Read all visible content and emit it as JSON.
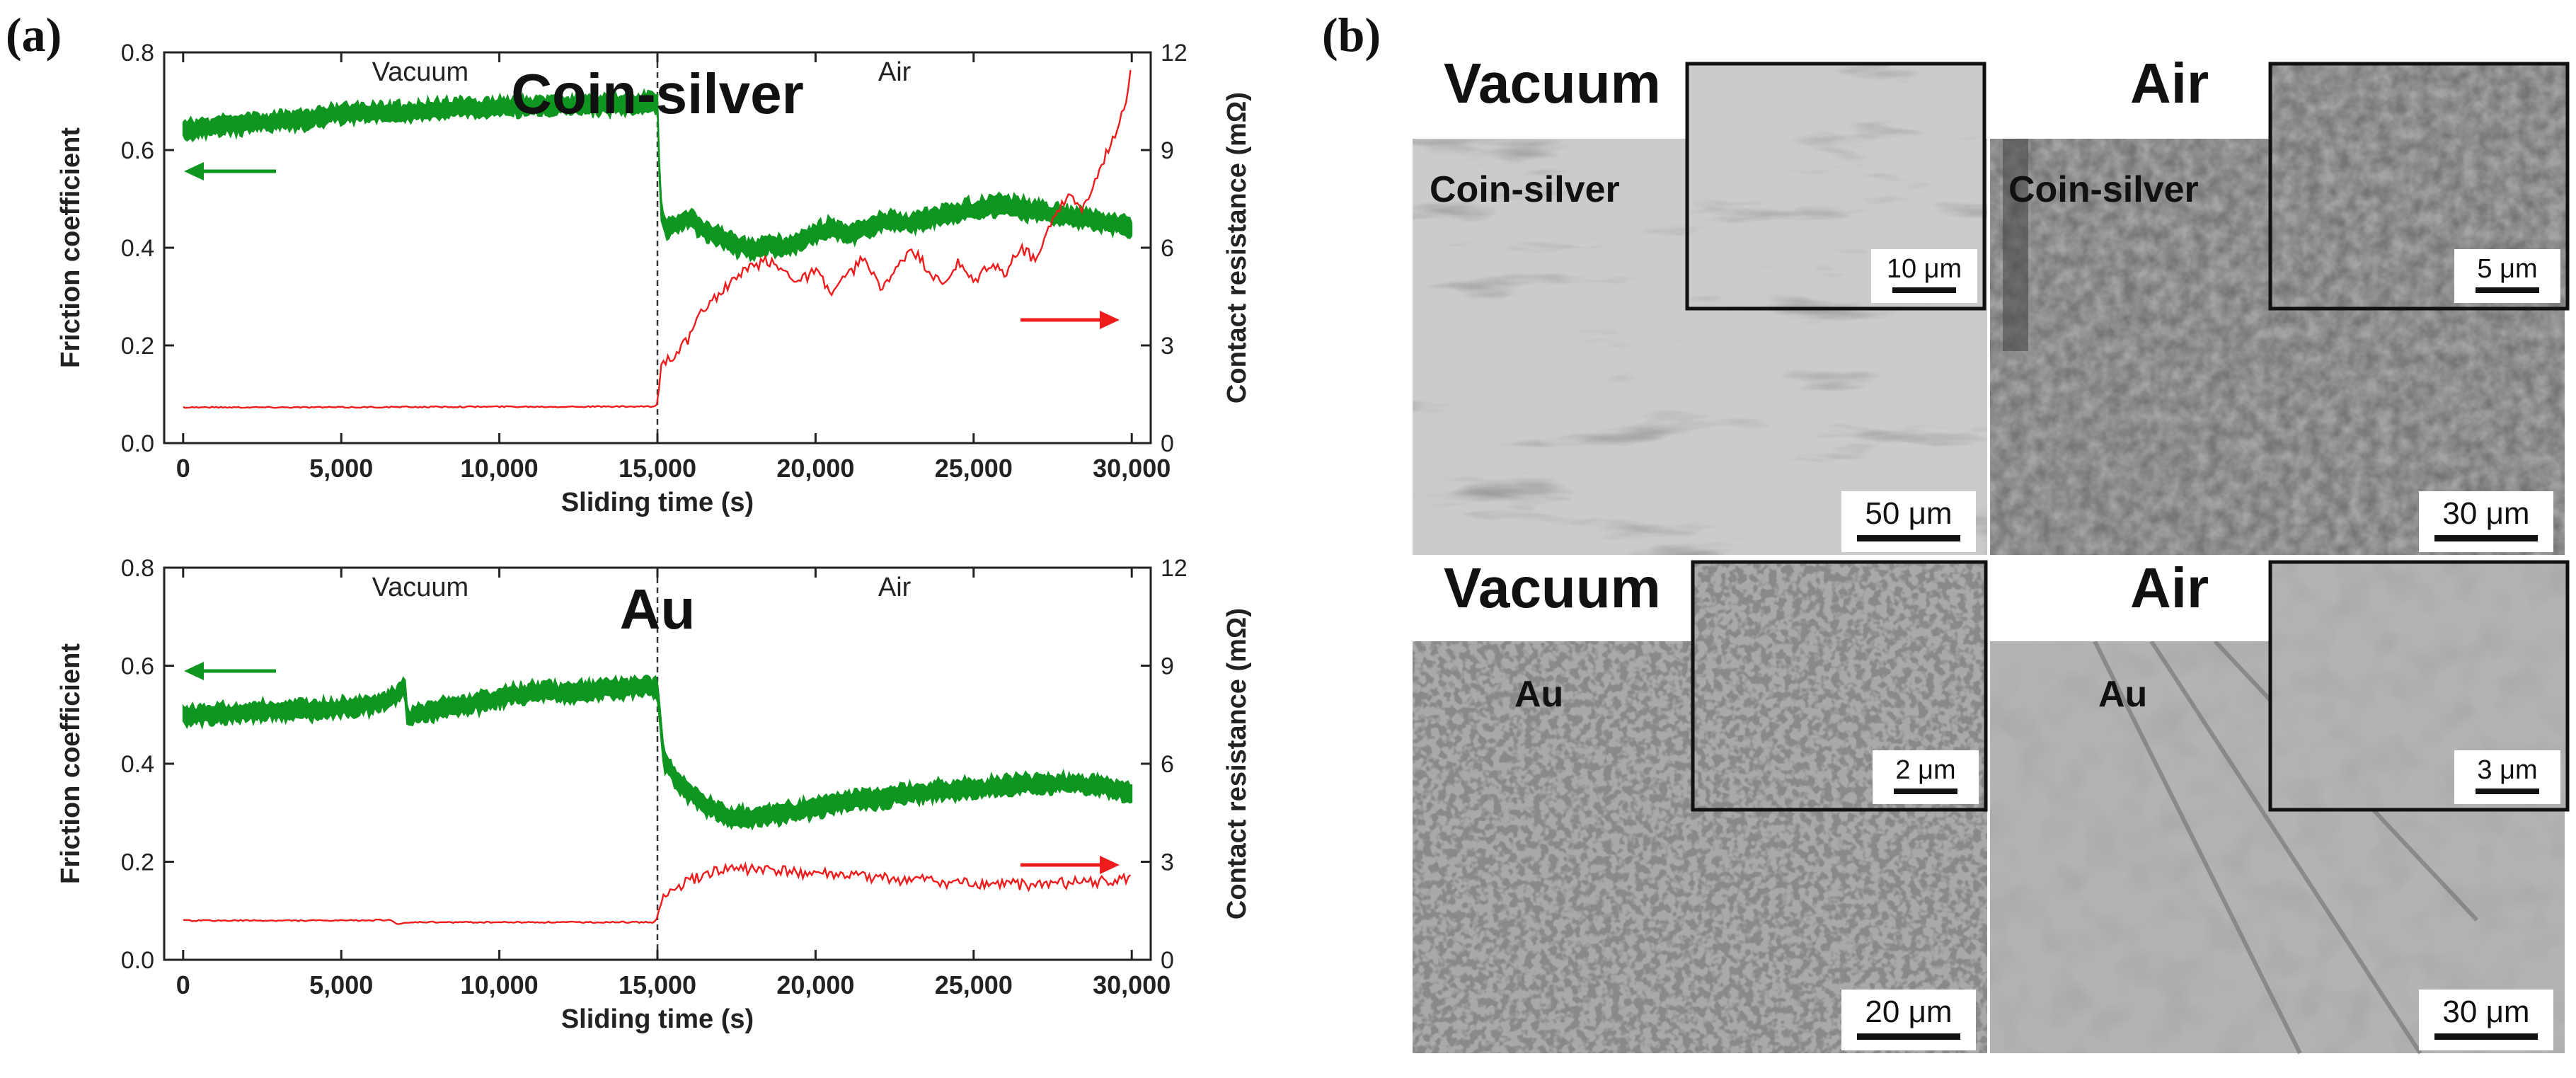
{
  "figure": {
    "panel_a_label": "(a)",
    "panel_b_label": "(b)"
  },
  "chart_data": [
    {
      "type": "line",
      "material": "Coin-silver",
      "xlabel": "Sliding time (s)",
      "ylabel_left": "Friction coefficient",
      "ylabel_right": "Contact resistance (mΩ)",
      "xlim": [
        -600,
        30600
      ],
      "xticks": [
        0,
        5000,
        10000,
        15000,
        20000,
        25000,
        30000
      ],
      "xtick_labels": [
        "0",
        "5,000",
        "10,000",
        "15,000",
        "20,000",
        "25,000",
        "30,000"
      ],
      "ylim_left": [
        0,
        0.8
      ],
      "yticks_left": [
        "0.0",
        "0.2",
        "0.4",
        "0.6",
        "0.8"
      ],
      "ylim_right": [
        0,
        12
      ],
      "yticks_right": [
        "0",
        "3",
        "6",
        "9",
        "12"
      ],
      "regions": [
        {
          "label": "Vacuum",
          "x": 7500
        },
        {
          "label": "Air",
          "x": 22500
        }
      ],
      "divider_x": 15000,
      "series": [
        {
          "name": "Friction coefficient",
          "axis": "left",
          "color": "#0e9620",
          "band_width": 0.035,
          "x": [
            0,
            1000,
            2000,
            3000,
            4000,
            5000,
            6000,
            7000,
            8000,
            9000,
            10000,
            11000,
            12000,
            13000,
            14000,
            14800,
            15000,
            15100,
            15300,
            15600,
            16000,
            16500,
            17000,
            17500,
            18000,
            18500,
            19000,
            19500,
            20000,
            20500,
            21000,
            21500,
            22000,
            22500,
            23000,
            23500,
            24000,
            24500,
            25000,
            25500,
            26000,
            26500,
            27000,
            27500,
            28000,
            28500,
            29000,
            29500,
            30000
          ],
          "values": [
            0.64,
            0.65,
            0.655,
            0.66,
            0.665,
            0.675,
            0.678,
            0.675,
            0.683,
            0.685,
            0.688,
            0.69,
            0.69,
            0.692,
            0.695,
            0.697,
            0.69,
            0.48,
            0.44,
            0.45,
            0.46,
            0.435,
            0.42,
            0.405,
            0.395,
            0.41,
            0.4,
            0.415,
            0.43,
            0.44,
            0.425,
            0.44,
            0.45,
            0.455,
            0.45,
            0.46,
            0.465,
            0.475,
            0.48,
            0.485,
            0.49,
            0.48,
            0.475,
            0.47,
            0.465,
            0.46,
            0.455,
            0.45,
            0.44
          ]
        },
        {
          "name": "Contact resistance",
          "axis": "right",
          "color": "#ee1c1c",
          "band_width": 0,
          "x": [
            0,
            5000,
            10000,
            14900,
            15000,
            15100,
            15500,
            16000,
            16500,
            17000,
            17500,
            18000,
            18500,
            19000,
            19500,
            20000,
            20500,
            21000,
            21500,
            22000,
            22500,
            23000,
            23500,
            24000,
            24500,
            25000,
            25500,
            26000,
            26500,
            27000,
            27500,
            28000,
            28500,
            29000,
            29500,
            29800,
            30000
          ],
          "values": [
            1.1,
            1.1,
            1.12,
            1.12,
            1.2,
            2.4,
            2.7,
            3.2,
            4.2,
            4.6,
            5.1,
            5.4,
            5.6,
            5.3,
            5.0,
            5.3,
            4.6,
            5.1,
            5.7,
            4.8,
            5.2,
            6.0,
            5.4,
            4.8,
            5.5,
            4.9,
            5.5,
            5.2,
            6.0,
            5.6,
            7.0,
            7.6,
            7.2,
            8.4,
            9.6,
            10.5,
            11.6
          ]
        }
      ]
    },
    {
      "type": "line",
      "material": "Au",
      "xlabel": "Sliding time (s)",
      "ylabel_left": "Friction coefficient",
      "ylabel_right": "Contact resistance (mΩ)",
      "xlim": [
        -600,
        30600
      ],
      "xticks": [
        0,
        5000,
        10000,
        15000,
        20000,
        25000,
        30000
      ],
      "xtick_labels": [
        "0",
        "5,000",
        "10,000",
        "15,000",
        "20,000",
        "25,000",
        "30,000"
      ],
      "ylim_left": [
        0,
        0.8
      ],
      "yticks_left": [
        "0.0",
        "0.2",
        "0.4",
        "0.6",
        "0.8"
      ],
      "ylim_right": [
        0,
        12
      ],
      "yticks_right": [
        "0",
        "3",
        "6",
        "9",
        "12"
      ],
      "regions": [
        {
          "label": "Vacuum",
          "x": 7500
        },
        {
          "label": "Air",
          "x": 22500
        }
      ],
      "divider_x": 15000,
      "series": [
        {
          "name": "Friction coefficient",
          "axis": "left",
          "color": "#0e9620",
          "band_width": 0.035,
          "x": [
            0,
            1000,
            2000,
            3000,
            4000,
            5000,
            6000,
            6800,
            7000,
            7100,
            7300,
            8000,
            9000,
            10000,
            11000,
            11500,
            12000,
            13000,
            14000,
            14800,
            15000,
            15200,
            15600,
            16000,
            16500,
            17000,
            17500,
            18000,
            18500,
            19000,
            20000,
            21000,
            22000,
            23000,
            24000,
            25000,
            26000,
            27000,
            28000,
            29000,
            30000
          ],
          "values": [
            0.5,
            0.5,
            0.505,
            0.51,
            0.51,
            0.515,
            0.52,
            0.54,
            0.56,
            0.49,
            0.5,
            0.51,
            0.52,
            0.535,
            0.545,
            0.55,
            0.545,
            0.55,
            0.555,
            0.56,
            0.55,
            0.41,
            0.37,
            0.34,
            0.315,
            0.3,
            0.29,
            0.29,
            0.295,
            0.3,
            0.31,
            0.325,
            0.33,
            0.34,
            0.345,
            0.35,
            0.355,
            0.36,
            0.36,
            0.355,
            0.34
          ]
        },
        {
          "name": "Contact resistance",
          "axis": "right",
          "color": "#ee1c1c",
          "band_width": 0,
          "x": [
            0,
            5000,
            6500,
            6800,
            7100,
            7400,
            10000,
            14900,
            15000,
            15200,
            15600,
            16000,
            16500,
            17000,
            17500,
            18000,
            18500,
            19000,
            20000,
            21000,
            22000,
            23000,
            24000,
            25000,
            26000,
            27000,
            28000,
            29000,
            30000
          ],
          "values": [
            1.2,
            1.2,
            1.22,
            1.1,
            1.12,
            1.15,
            1.15,
            1.15,
            1.3,
            1.9,
            2.2,
            2.4,
            2.6,
            2.72,
            2.8,
            2.78,
            2.75,
            2.7,
            2.65,
            2.55,
            2.5,
            2.45,
            2.38,
            2.32,
            2.3,
            2.3,
            2.35,
            2.4,
            2.45
          ]
        }
      ]
    }
  ],
  "micrographs": [
    {
      "env": "Vacuum",
      "material": "Coin-silver",
      "scale": "50 μm",
      "inset_scale": "10 μm",
      "texture": "worn"
    },
    {
      "env": "Air",
      "material": "Coin-silver",
      "scale": "30 μm",
      "inset_scale": "5 μm",
      "texture": "rough"
    },
    {
      "env": "Vacuum",
      "material": "Au",
      "scale": "20 μm",
      "inset_scale": "2 μm",
      "texture": "porous"
    },
    {
      "env": "Air",
      "material": "Au",
      "scale": "30 μm",
      "inset_scale": "3 μm",
      "texture": "smooth"
    }
  ]
}
